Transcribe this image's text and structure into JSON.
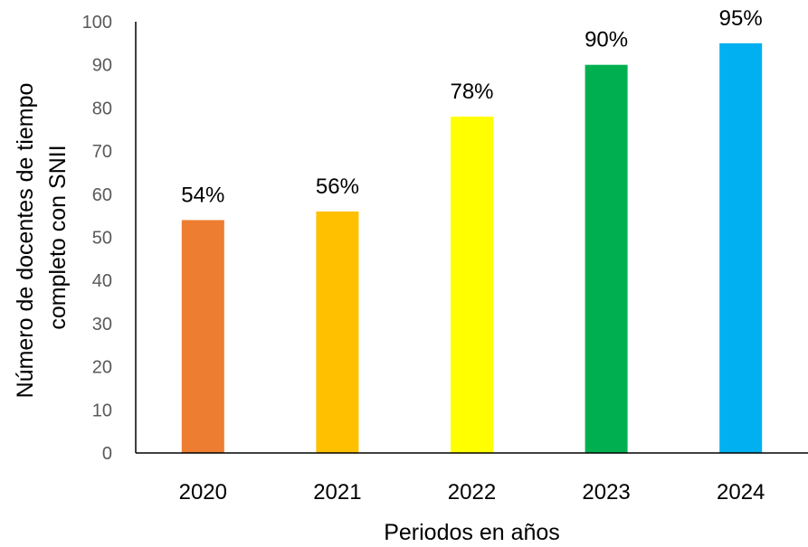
{
  "chart_data": {
    "type": "bar",
    "categories": [
      "2020",
      "2021",
      "2022",
      "2023",
      "2024"
    ],
    "values": [
      54,
      56,
      78,
      90,
      95
    ],
    "data_labels": [
      "54%",
      "56%",
      "78%",
      "90%",
      "95%"
    ],
    "colors": [
      "#ED7D31",
      "#FFC000",
      "#FFFF00",
      "#00B050",
      "#00B0F0"
    ],
    "title": "",
    "xlabel": "Periodos en años",
    "ylabel_lines": [
      "Número de docentes de tiempo",
      "completo con SNII"
    ],
    "ylim": [
      0,
      100
    ],
    "yticks": [
      0,
      10,
      20,
      30,
      40,
      50,
      60,
      70,
      80,
      90,
      100
    ],
    "grid": false,
    "legend": "none"
  }
}
